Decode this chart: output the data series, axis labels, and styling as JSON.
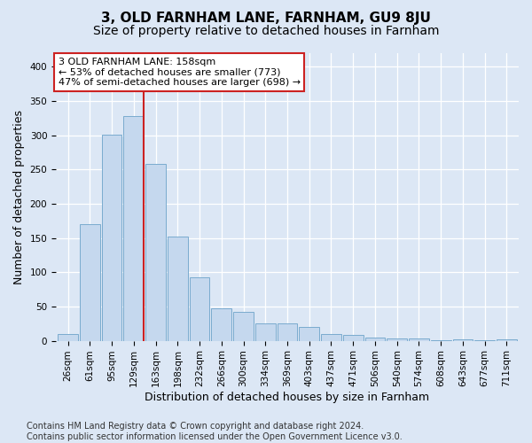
{
  "title": "3, OLD FARNHAM LANE, FARNHAM, GU9 8JU",
  "subtitle": "Size of property relative to detached houses in Farnham",
  "xlabel": "Distribution of detached houses by size in Farnham",
  "ylabel": "Number of detached properties",
  "bar_labels": [
    "26sqm",
    "61sqm",
    "95sqm",
    "129sqm",
    "163sqm",
    "198sqm",
    "232sqm",
    "266sqm",
    "300sqm",
    "334sqm",
    "369sqm",
    "403sqm",
    "437sqm",
    "471sqm",
    "506sqm",
    "540sqm",
    "574sqm",
    "608sqm",
    "643sqm",
    "677sqm",
    "711sqm"
  ],
  "bar_values": [
    10,
    170,
    301,
    328,
    258,
    152,
    92,
    48,
    42,
    25,
    25,
    20,
    10,
    9,
    5,
    4,
    4,
    1,
    2,
    1,
    2
  ],
  "bar_color": "#c5d8ee",
  "bar_edgecolor": "#7aabce",
  "background_color": "#dce7f5",
  "vline_color": "#cc2222",
  "vline_xindex": 3.46,
  "annotation_line1": "3 OLD FARNHAM LANE: 158sqm",
  "annotation_line2": "← 53% of detached houses are smaller (773)",
  "annotation_line3": "47% of semi-detached houses are larger (698) →",
  "annotation_box_facecolor": "#ffffff",
  "annotation_box_edgecolor": "#cc2222",
  "ylim": [
    0,
    420
  ],
  "yticks": [
    0,
    50,
    100,
    150,
    200,
    250,
    300,
    350,
    400
  ],
  "footer_line1": "Contains HM Land Registry data © Crown copyright and database right 2024.",
  "footer_line2": "Contains public sector information licensed under the Open Government Licence v3.0.",
  "title_fontsize": 11,
  "subtitle_fontsize": 10,
  "ylabel_fontsize": 9,
  "xlabel_fontsize": 9,
  "tick_fontsize": 7.5,
  "annot_fontsize": 8,
  "footer_fontsize": 7
}
